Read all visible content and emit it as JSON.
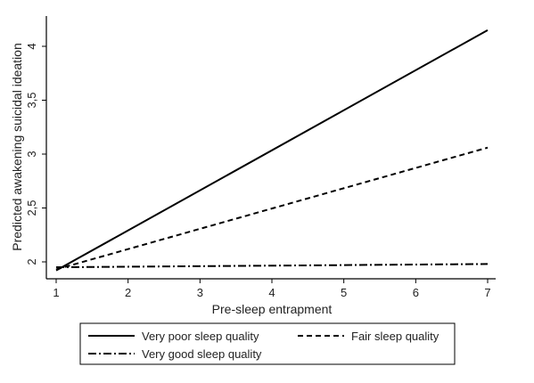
{
  "chart_data": {
    "type": "line",
    "xlabel": "Pre-sleep entrapment",
    "ylabel": "Predicted awakening suicidal ideation",
    "xlim": [
      1,
      7
    ],
    "ylim": [
      1.88,
      4.2
    ],
    "xticks": [
      1,
      2,
      3,
      4,
      5,
      6,
      7
    ],
    "yticks": [
      2,
      2.5,
      3,
      3.5,
      4
    ],
    "ytick_labels": [
      "2",
      "2,5",
      "3",
      "3,5",
      "4"
    ],
    "grid": false,
    "legend_position": "bottom",
    "series": [
      {
        "name": "Very poor sleep quality",
        "style": "solid",
        "x": [
          1,
          7
        ],
        "y": [
          1.92,
          4.15
        ]
      },
      {
        "name": "Fair sleep quality",
        "style": "dashed",
        "x": [
          1,
          7
        ],
        "y": [
          1.93,
          3.06
        ]
      },
      {
        "name": "Very good sleep quality",
        "style": "dashdot",
        "x": [
          1,
          7
        ],
        "y": [
          1.95,
          1.98
        ]
      }
    ]
  }
}
